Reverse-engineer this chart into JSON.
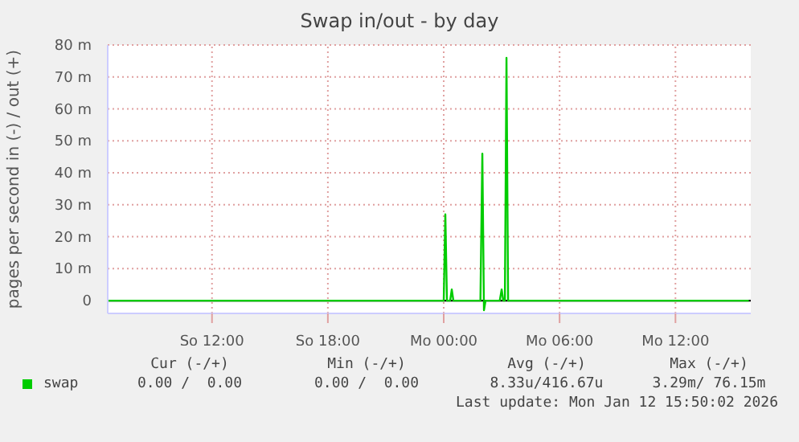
{
  "chart_data": {
    "type": "line",
    "title": "Swap in/out - by day",
    "ylabel": "pages per second in (-) / out (+)",
    "series": [
      {
        "name": "swap",
        "color": "#00cc00",
        "x": [
          "2026-01-11T06:36",
          "2026-01-12T00:00",
          "2026-01-12T00:05",
          "2026-01-12T00:10",
          "2026-01-12T00:20",
          "2026-01-12T00:25",
          "2026-01-12T00:30",
          "2026-01-12T01:54",
          "2026-01-12T02:00",
          "2026-01-12T02:05",
          "2026-01-12T02:10",
          "2026-01-12T02:54",
          "2026-01-12T03:00",
          "2026-01-12T03:05",
          "2026-01-12T03:10",
          "2026-01-12T03:15",
          "2026-01-12T03:20",
          "2026-01-12T15:48"
        ],
        "values": [
          0,
          0,
          27,
          0,
          0,
          3.5,
          0,
          0,
          46,
          -3,
          0,
          0,
          3.5,
          0,
          0,
          76,
          0,
          0
        ]
      }
    ],
    "xlim": [
      "2026-01-11T06:36",
      "2026-01-12T15:54"
    ],
    "xticks": [
      {
        "value": "2026-01-11T12:00",
        "label": "So 12:00"
      },
      {
        "value": "2026-01-11T18:00",
        "label": "So 18:00"
      },
      {
        "value": "2026-01-12T00:00",
        "label": "Mo 00:00"
      },
      {
        "value": "2026-01-12T06:00",
        "label": "Mo 06:00"
      },
      {
        "value": "2026-01-12T12:00",
        "label": "Mo 12:00"
      }
    ],
    "ylim": [
      -4,
      80
    ],
    "yticks": [
      0,
      {
        "value": 10,
        "label": "10 m"
      },
      {
        "value": 20,
        "label": "20 m"
      },
      {
        "value": 30,
        "label": "30 m"
      },
      {
        "value": 40,
        "label": "40 m"
      },
      {
        "value": 50,
        "label": "50 m"
      },
      {
        "value": 60,
        "label": "60 m"
      },
      {
        "value": 70,
        "label": "70 m"
      },
      {
        "value": 80,
        "label": "80 m"
      }
    ],
    "ref_lines": [
      {
        "axis": "y",
        "value": 0,
        "color": "#000000"
      }
    ],
    "grid": true,
    "legend": "bottom",
    "marker": "none",
    "line_style": "solid",
    "annotations": [
      "Cur (-/+)",
      "Min (-/+)",
      "Avg (-/+)",
      "Max (-/+)",
      "0.00 /  0.00",
      "0.00 /  0.00",
      "8.33u/416.67u",
      "3.29m/ 76.15m",
      "Last update: Mon Jan 12 15:50:02 2026"
    ]
  }
}
